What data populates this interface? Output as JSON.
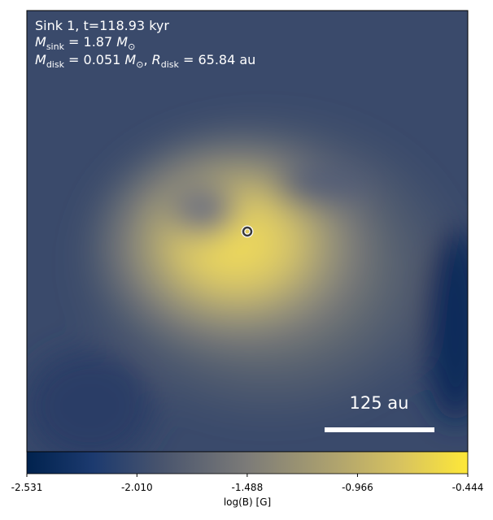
{
  "chart_data": {
    "type": "heatmap",
    "annotations": {
      "title": "Sink 1, t=118.93 kyr",
      "sink_mass": {
        "symbol": "M",
        "sub": "sink",
        "value": " = 1.87 ",
        "unit": "M",
        "unit_sub": "⊙"
      },
      "disk": {
        "symbol": "M",
        "sub": "disk",
        "value": " = 0.051 ",
        "unit": "M",
        "unit_sub": "⊙",
        "separator": ", ",
        "r_symbol": "R",
        "r_sub": "disk",
        "r_value": " = 65.84 au"
      }
    },
    "scale_bar": "125 au",
    "colorbar": {
      "label": "log(B) [G]",
      "clim": [
        -2.531,
        -0.444
      ],
      "ticks": [
        -2.531,
        {
          "value": -2.01,
          "label": "-2.010"
        },
        -1.488,
        -0.966,
        -0.444
      ]
    }
  }
}
